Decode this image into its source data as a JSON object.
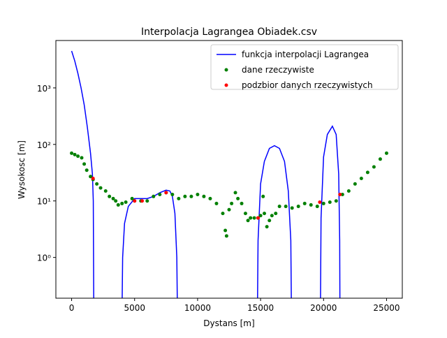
{
  "chart_data": {
    "type": "line",
    "title": "Interpolacja Lagrangea Obiadek.csv",
    "x_label": "Dystans [m]",
    "y_label": "Wysokosc [m]",
    "xlim": [
      -1250,
      26250
    ],
    "ylim": [
      0.19,
      6900
    ],
    "y_scale": "log",
    "xticks": [
      0,
      5000,
      10000,
      15000,
      20000,
      25000
    ],
    "yticks": [
      {
        "value": 1,
        "label": "10⁰"
      },
      {
        "value": 10,
        "label": "10¹"
      },
      {
        "value": 100,
        "label": "10²"
      },
      {
        "value": 1000,
        "label": "10³"
      }
    ],
    "legend": "upper right",
    "series": [
      {
        "name": "funkcja interpolacji Lagrangea",
        "type": "line",
        "color": "#0000ff",
        "x": [
          0,
          250,
          500,
          750,
          1000,
          1250,
          1500,
          1650,
          1720,
          1760,
          1800,
          4000,
          4050,
          4200,
          4500,
          5000,
          5500,
          6000,
          6500,
          7000,
          7500,
          7800,
          8000,
          8200,
          8350,
          8400,
          8500,
          14750,
          14800,
          15000,
          15300,
          15700,
          16100,
          16500,
          16900,
          17200,
          17400,
          17450,
          17600,
          19750,
          19800,
          20000,
          20300,
          20700,
          21000,
          21200,
          21280,
          21300
        ],
        "values": [
          4500,
          3000,
          1800,
          1000,
          500,
          200,
          70,
          30,
          10,
          0.1,
          null,
          0.1,
          1,
          4,
          8,
          11,
          11,
          11,
          12,
          14,
          15.5,
          15,
          12,
          6,
          1,
          0.1,
          null,
          0.1,
          2,
          20,
          50,
          85,
          95,
          85,
          50,
          15,
          2,
          0.1,
          null,
          0.1,
          5,
          60,
          150,
          210,
          150,
          30,
          2,
          0.1
        ]
      },
      {
        "name": "dane rzeczywiste",
        "type": "scatter",
        "color": "#008000",
        "x": [
          0,
          250,
          500,
          800,
          1000,
          1200,
          1500,
          1700,
          2000,
          2300,
          2700,
          3000,
          3300,
          3500,
          3700,
          4000,
          4300,
          4800,
          5000,
          5500,
          6000,
          6500,
          7000,
          7500,
          8000,
          8500,
          9000,
          9500,
          10000,
          10500,
          11000,
          11500,
          12000,
          12200,
          12300,
          12500,
          12700,
          13000,
          13200,
          13500,
          13800,
          14000,
          14200,
          14500,
          14800,
          15000,
          15200,
          15300,
          15500,
          15700,
          15900,
          16200,
          16500,
          17000,
          17500,
          18000,
          18500,
          19000,
          19500,
          20000,
          20500,
          21000,
          21500,
          22000,
          22500,
          23000,
          23500,
          24000,
          24500,
          25000
        ],
        "values": [
          70,
          66,
          62,
          58,
          45,
          35,
          27,
          24,
          20,
          17,
          15,
          12,
          11,
          10,
          8.5,
          9,
          9.5,
          11,
          10,
          10,
          10,
          12,
          13,
          14,
          13,
          11,
          12,
          12,
          13,
          12,
          11,
          9,
          6,
          3,
          2.4,
          7,
          9,
          14,
          11,
          9,
          6,
          4.5,
          5,
          5,
          5,
          5.5,
          12,
          6,
          3.5,
          4.5,
          5.5,
          6,
          8,
          8,
          7.5,
          8,
          9,
          8.5,
          8,
          9,
          9.5,
          10,
          13,
          15,
          20,
          25,
          32,
          40,
          55,
          70
        ]
      },
      {
        "name": "podzbior danych rzeczywistych",
        "type": "scatter",
        "color": "#ff0000",
        "x": [
          1700,
          5000,
          5600,
          7500,
          14800,
          19700,
          21300
        ],
        "values": [
          25,
          10,
          10,
          14,
          5,
          9.5,
          13
        ]
      }
    ]
  }
}
